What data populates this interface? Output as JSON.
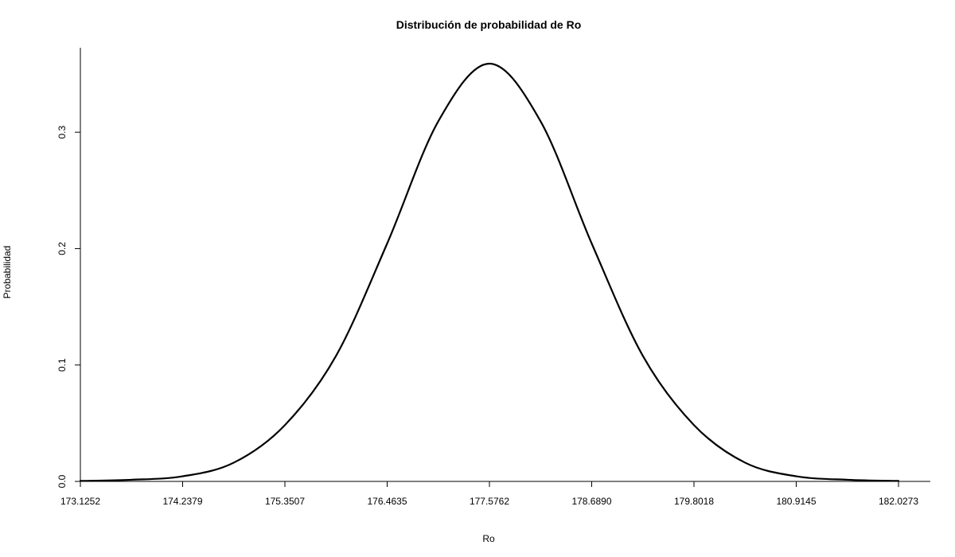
{
  "chart_data": {
    "type": "line",
    "title": "Distribución de probabilidad de Ro",
    "xlabel": "Ro",
    "ylabel": "Probabilidad",
    "xlim": [
      173.1252,
      182.0273
    ],
    "ylim": [
      0,
      0.36
    ],
    "x_ticks": [
      173.1252,
      174.2379,
      175.3507,
      176.4635,
      177.5762,
      178.689,
      179.8018,
      180.9145,
      182.0273
    ],
    "x_tick_labels": [
      "173.1252",
      "174.2379",
      "175.3507",
      "176.4635",
      "177.5762",
      "178.6890",
      "179.8018",
      "180.9145",
      "182.0273"
    ],
    "y_ticks": [
      0,
      0.1,
      0.2,
      0.3
    ],
    "y_tick_labels": [
      "0.0",
      "0.1",
      "0.2",
      "0.3"
    ],
    "grid": false,
    "legend": "none",
    "series": [
      {
        "x": [
          173.1252,
          173.6816,
          174.2379,
          174.7943,
          175.3507,
          175.9071,
          176.4635,
          177.0198,
          177.5762,
          178.1326,
          178.689,
          179.2454,
          179.8018,
          180.3581,
          180.9145,
          181.4709,
          182.0273
        ],
        "values": [
          0.0004,
          0.0014,
          0.0044,
          0.0161,
          0.0484,
          0.1079,
          0.2044,
          0.3094,
          0.3589,
          0.3094,
          0.2044,
          0.1079,
          0.0484,
          0.0161,
          0.0044,
          0.0014,
          0.0004
        ]
      }
    ]
  }
}
